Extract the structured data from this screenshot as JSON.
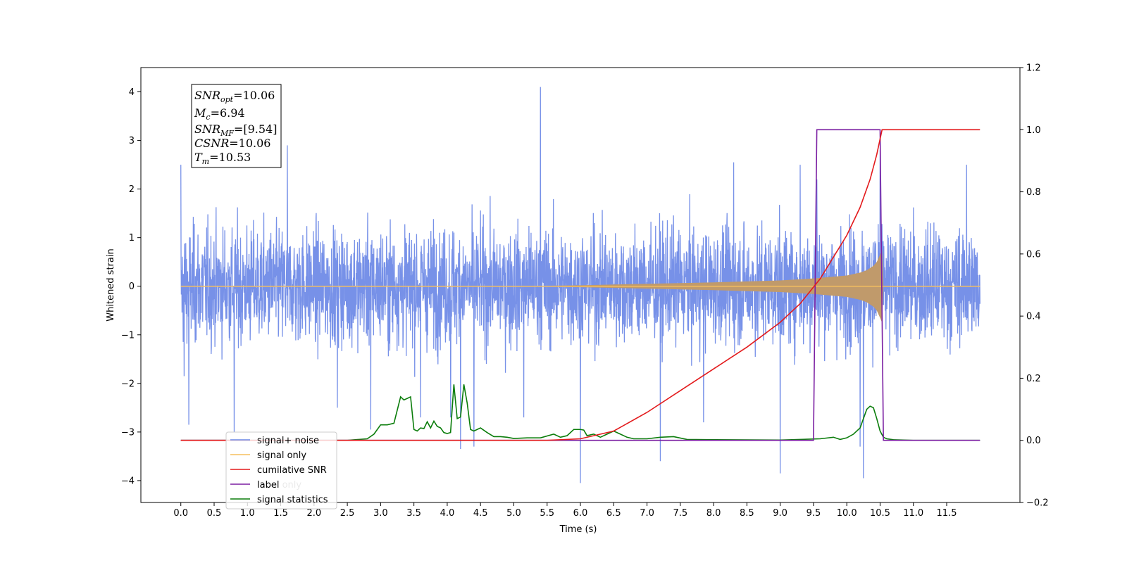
{
  "chart_data": {
    "type": "line",
    "title": "",
    "xlabel": "Time (s)",
    "ylabel_left": "Whitened strain",
    "ylabel_right": "",
    "xlim": [
      -0.6,
      12.6
    ],
    "ylim_left": [
      -4.45,
      4.5
    ],
    "ylim_right": [
      -0.2,
      1.2
    ],
    "x_ticks": [
      0.0,
      0.5,
      1.0,
      1.5,
      2.0,
      2.5,
      3.0,
      3.5,
      4.0,
      4.5,
      5.0,
      5.5,
      6.0,
      6.5,
      7.0,
      7.5,
      8.0,
      8.5,
      9.0,
      9.5,
      10.0,
      10.5,
      11.0,
      11.5
    ],
    "x_tick_labels": [
      "0.0",
      "0.5",
      "1.0",
      "1.5",
      "2.0",
      "2.5",
      "3.0",
      "3.5",
      "4.0",
      "4.5",
      "5.0",
      "5.5",
      "6.0",
      "6.5",
      "7.0",
      "7.5",
      "8.0",
      "8.5",
      "9.0",
      "9.5",
      "10.0",
      "10.5",
      "11.0",
      "11.5"
    ],
    "y_left_ticks": [
      -4,
      -3,
      -2,
      -1,
      0,
      1,
      2,
      3,
      4
    ],
    "y_left_tick_labels": [
      "−4",
      "−3",
      "−2",
      "−1",
      "0",
      "1",
      "2",
      "3",
      "4"
    ],
    "y_right_ticks": [
      -0.2,
      0.0,
      0.2,
      0.4,
      0.6,
      0.8,
      1.0,
      1.2
    ],
    "y_right_tick_labels": [
      "−0.2",
      "0.0",
      "0.2",
      "0.4",
      "0.6",
      "0.8",
      "1.0",
      "1.2"
    ],
    "grid": false,
    "legend_position": "lower-left",
    "series": [
      {
        "name": "signal+ noise",
        "axis": "left",
        "color": "#6b88e6",
        "x_range": [
          0.0,
          12.0
        ],
        "typical_envelope": [
          -1.4,
          1.4
        ],
        "peaks": [
          {
            "x": 0.0,
            "y": 2.5
          },
          {
            "x": 0.05,
            "y": -1.85
          },
          {
            "x": 0.12,
            "y": -2.85
          },
          {
            "x": 0.8,
            "y": -3.0
          },
          {
            "x": 1.6,
            "y": 2.9
          },
          {
            "x": 2.35,
            "y": -2.5
          },
          {
            "x": 2.85,
            "y": -2.95
          },
          {
            "x": 3.6,
            "y": -2.7
          },
          {
            "x": 4.05,
            "y": -2.7
          },
          {
            "x": 4.2,
            "y": -3.35
          },
          {
            "x": 4.4,
            "y": -3.3
          },
          {
            "x": 5.15,
            "y": -2.7
          },
          {
            "x": 5.4,
            "y": 4.1
          },
          {
            "x": 6.0,
            "y": -4.05
          },
          {
            "x": 7.2,
            "y": -3.6
          },
          {
            "x": 7.85,
            "y": -2.8
          },
          {
            "x": 8.3,
            "y": 2.55
          },
          {
            "x": 9.0,
            "y": -3.85
          },
          {
            "x": 9.3,
            "y": 2.5
          },
          {
            "x": 9.55,
            "y": 2.2
          },
          {
            "x": 10.2,
            "y": -3.3
          },
          {
            "x": 10.25,
            "y": -3.95
          },
          {
            "x": 10.5,
            "y": 2.8
          },
          {
            "x": 11.8,
            "y": 2.5
          }
        ]
      },
      {
        "name": "signal only",
        "axis": "left",
        "color": "#f5bf5f",
        "x_range": [
          0.0,
          12.0
        ],
        "envelope_points": {
          "x": [
            0.0,
            5.0,
            6.0,
            7.0,
            8.0,
            9.0,
            9.5,
            10.0,
            10.2,
            10.3,
            10.4,
            10.45,
            10.5,
            10.53,
            10.55,
            12.0
          ],
          "amplitude": [
            0.0,
            0.0,
            0.02,
            0.05,
            0.08,
            0.12,
            0.16,
            0.22,
            0.28,
            0.33,
            0.42,
            0.5,
            0.65,
            0.75,
            0.0,
            0.0
          ]
        }
      },
      {
        "name": "cumilative SNR",
        "axis": "right",
        "color": "#e31a1c",
        "x": [
          0.0,
          5.5,
          6.0,
          6.5,
          7.0,
          7.5,
          8.0,
          8.5,
          9.0,
          9.3,
          9.6,
          9.8,
          10.0,
          10.2,
          10.35,
          10.45,
          10.5,
          10.53,
          12.0
        ],
        "y": [
          0.0,
          0.0,
          0.005,
          0.03,
          0.09,
          0.16,
          0.23,
          0.3,
          0.38,
          0.44,
          0.52,
          0.59,
          0.66,
          0.75,
          0.84,
          0.92,
          0.97,
          1.0,
          1.0
        ]
      },
      {
        "name": "label",
        "axis": "right",
        "color": "#7b1fa2",
        "x": [
          0.0,
          9.5,
          9.55,
          10.5,
          10.55,
          12.0
        ],
        "y": [
          0.0,
          0.0,
          1.0,
          1.0,
          0.0,
          0.0
        ]
      },
      {
        "name": "label only",
        "axis": "right",
        "color": "#7b1fa2",
        "x": [],
        "y": []
      },
      {
        "name": "signal statistics",
        "axis": "right",
        "color": "#0b7d0b",
        "x": [
          0.0,
          2.5,
          2.8,
          2.9,
          3.0,
          3.1,
          3.2,
          3.3,
          3.35,
          3.4,
          3.45,
          3.5,
          3.55,
          3.6,
          3.65,
          3.7,
          3.75,
          3.8,
          3.85,
          3.9,
          3.95,
          4.0,
          4.05,
          4.1,
          4.15,
          4.2,
          4.25,
          4.3,
          4.35,
          4.4,
          4.45,
          4.5,
          4.6,
          4.7,
          4.8,
          4.9,
          5.0,
          5.2,
          5.4,
          5.6,
          5.7,
          5.8,
          5.9,
          6.0,
          6.05,
          6.1,
          6.2,
          6.3,
          6.4,
          6.5,
          6.6,
          6.7,
          6.8,
          7.0,
          7.2,
          7.4,
          7.6,
          8.0,
          9.0,
          9.6,
          9.8,
          9.9,
          10.0,
          10.1,
          10.2,
          10.3,
          10.35,
          10.4,
          10.45,
          10.5,
          10.55,
          10.6,
          10.7,
          11.0,
          12.0
        ],
        "y": [
          0.0,
          0.0,
          0.005,
          0.02,
          0.05,
          0.05,
          0.055,
          0.14,
          0.13,
          0.135,
          0.14,
          0.035,
          0.03,
          0.04,
          0.038,
          0.06,
          0.04,
          0.062,
          0.045,
          0.04,
          0.025,
          0.022,
          0.025,
          0.18,
          0.07,
          0.075,
          0.18,
          0.12,
          0.035,
          0.03,
          0.035,
          0.04,
          0.025,
          0.012,
          0.012,
          0.01,
          0.006,
          0.008,
          0.008,
          0.02,
          0.01,
          0.015,
          0.035,
          0.035,
          0.033,
          0.015,
          0.02,
          0.01,
          0.02,
          0.03,
          0.02,
          0.01,
          0.005,
          0.005,
          0.01,
          0.012,
          0.003,
          0.002,
          0.001,
          0.005,
          0.01,
          0.003,
          0.008,
          0.02,
          0.04,
          0.1,
          0.11,
          0.105,
          0.07,
          0.03,
          0.01,
          0.005,
          0.002,
          0.0,
          0.0
        ]
      }
    ],
    "annotations": [
      {
        "kind": "textbox",
        "lines": [
          "SNR_opt=10.06",
          "M_c=6.94",
          "SNR_MF=[9.54]",
          "CSNR=10.06",
          "T_m=10.53"
        ]
      }
    ],
    "legend_entries": [
      "signal+ noise",
      "signal only",
      "cumilative SNR",
      "label",
      "label only",
      "signal statistics"
    ]
  },
  "annotation_box": {
    "line1_main": "SNR",
    "line1_sub": "opt",
    "line1_rest": "=10.06",
    "line2_main": "M",
    "line2_sub": "c",
    "line2_rest": "=6.94",
    "line3_main": "SNR",
    "line3_sub": "MF",
    "line3_rest": "=[9.54]",
    "line4_main": "CSNR",
    "line4_rest": "=10.06",
    "line5_main": "T",
    "line5_sub": "m",
    "line5_rest": "=10.53"
  }
}
